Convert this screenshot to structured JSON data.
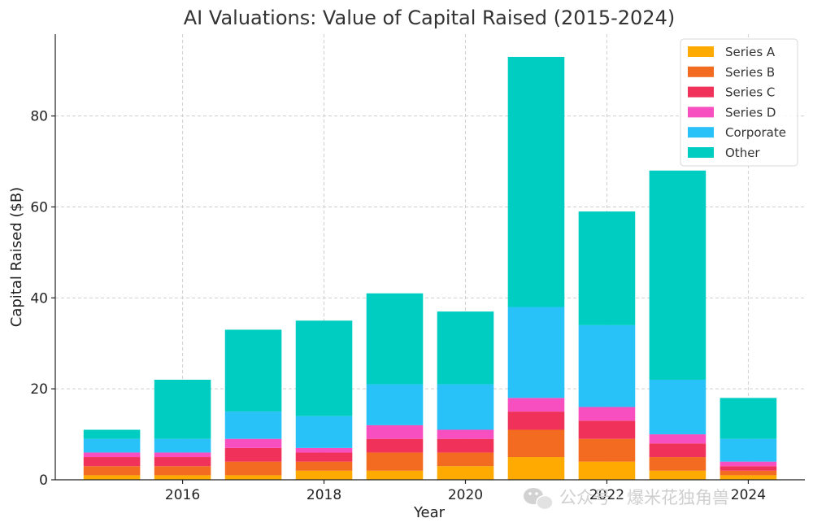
{
  "chart_data": {
    "type": "bar",
    "stacked": true,
    "title": "AI Valuations: Value of Capital Raised (2015-2024)",
    "xlabel": "Year",
    "ylabel": "Capital Raised ($B)",
    "categories": [
      2015,
      2016,
      2017,
      2018,
      2019,
      2020,
      2021,
      2022,
      2023,
      2024
    ],
    "x_ticks": [
      2016,
      2018,
      2020,
      2022,
      2024
    ],
    "xlim": [
      2014.2,
      2024.8
    ],
    "ylim": [
      0,
      98
    ],
    "y_ticks": [
      0,
      20,
      40,
      60,
      80
    ],
    "grid": true,
    "legend_position": "top-right",
    "series": [
      {
        "name": "Series A",
        "color": "#FFAA00",
        "values": [
          1,
          1,
          1,
          2,
          2,
          3,
          5,
          4,
          2,
          1
        ]
      },
      {
        "name": "Series B",
        "color": "#F26B21",
        "values": [
          2,
          2,
          3,
          2,
          4,
          3,
          6,
          5,
          3,
          1
        ]
      },
      {
        "name": "Series C",
        "color": "#F0325A",
        "values": [
          2,
          2,
          3,
          2,
          3,
          3,
          4,
          4,
          3,
          1
        ]
      },
      {
        "name": "Series D",
        "color": "#F74FC0",
        "values": [
          1,
          1,
          2,
          1,
          3,
          2,
          3,
          3,
          2,
          1
        ]
      },
      {
        "name": "Corporate",
        "color": "#29C2F8",
        "values": [
          3,
          3,
          6,
          7,
          9,
          10,
          20,
          18,
          12,
          5
        ]
      },
      {
        "name": "Other",
        "color": "#00CDC1",
        "values": [
          2,
          13,
          18,
          21,
          20,
          16,
          55,
          25,
          46,
          9
        ]
      }
    ]
  },
  "watermark": {
    "text": "公众号 · 爆米花独角兽",
    "icon": "wechat-icon"
  }
}
